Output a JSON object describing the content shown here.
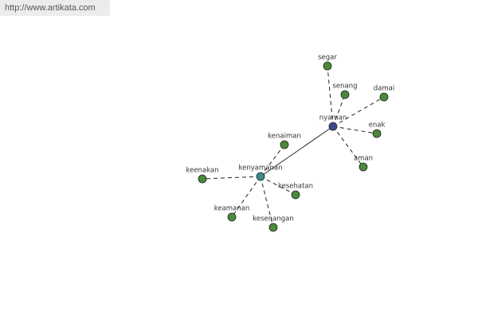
{
  "header": {
    "url": "http://www.artikata.com"
  },
  "nodes": [
    {
      "label": "nyaman"
    },
    {
      "label": "kenyamanan"
    },
    {
      "label": "segar"
    },
    {
      "label": "senang"
    },
    {
      "label": "damai"
    },
    {
      "label": "enak"
    },
    {
      "label": "aman"
    },
    {
      "label": "kenaiman"
    },
    {
      "label": "keenakan"
    },
    {
      "label": "kesehatan"
    },
    {
      "label": "keamanan"
    },
    {
      "label": "kesenangan"
    }
  ]
}
